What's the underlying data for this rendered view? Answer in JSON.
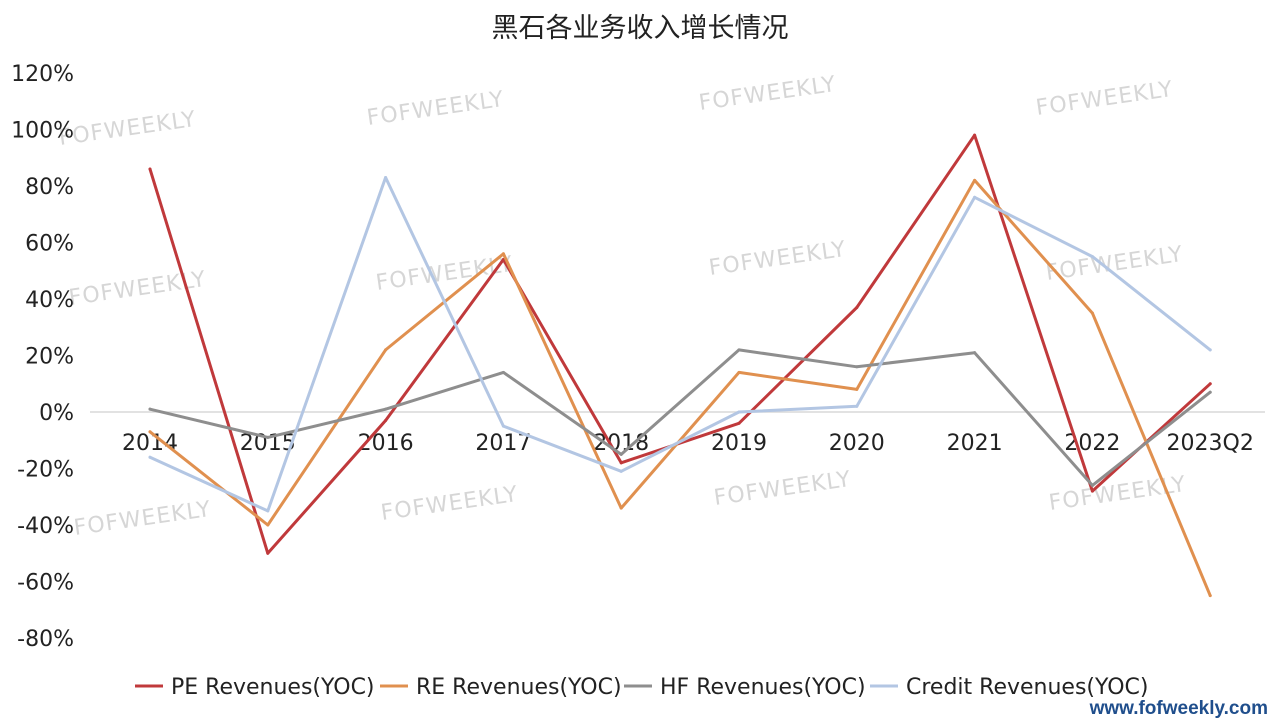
{
  "chart_data": {
    "type": "line",
    "title": "黑石各业务收入增长情况",
    "categories": [
      "2014",
      "2015",
      "2016",
      "2017",
      "2018",
      "2019",
      "2020",
      "2021",
      "2022",
      "2023Q2"
    ],
    "ylim": [
      -80,
      120
    ],
    "yticks": [
      "120%",
      "100%",
      "80%",
      "60%",
      "40%",
      "20%",
      "0%",
      "-20%",
      "-40%",
      "-60%",
      "-80%"
    ],
    "ytick_values": [
      120,
      100,
      80,
      60,
      40,
      20,
      0,
      -20,
      -40,
      -60,
      -80
    ],
    "grid": false,
    "legend_position": "bottom",
    "series": [
      {
        "name": "PE Revenues(YOC)",
        "color": "#c0393b",
        "values": [
          86,
          -50,
          -3,
          54,
          -18,
          -4,
          37,
          98,
          -28,
          10
        ]
      },
      {
        "name": "RE Revenues(YOC)",
        "color": "#e0904f",
        "values": [
          -7,
          -40,
          22,
          56,
          -34,
          14,
          8,
          82,
          35,
          -65
        ]
      },
      {
        "name": "HF Revenues(YOC)",
        "color": "#8e8e8e",
        "values": [
          1,
          -9,
          1,
          14,
          -15,
          22,
          16,
          21,
          -26,
          7
        ]
      },
      {
        "name": "Credit Revenues(YOC)",
        "color": "#b3c6e3",
        "values": [
          -16,
          -35,
          83,
          -5,
          -21,
          0,
          2,
          76,
          55,
          22
        ]
      }
    ]
  },
  "watermark": "FOFWEEKLY",
  "site": "www.fofweekly.com"
}
